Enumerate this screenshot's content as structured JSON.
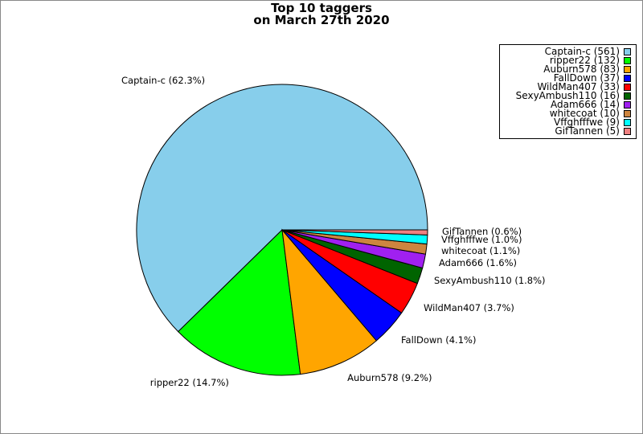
{
  "chart_data": {
    "type": "pie",
    "title": [
      "Top 10 taggers",
      "on March 27th 2020"
    ],
    "legend_position": "top-right",
    "slices": [
      {
        "name": "Captain-c",
        "value": 561,
        "percent": "62.3%",
        "color": "#87ceeb"
      },
      {
        "name": "ripper22",
        "value": 132,
        "percent": "14.7%",
        "color": "#00ff00"
      },
      {
        "name": "Auburn578",
        "value": 83,
        "percent": "9.2%",
        "color": "#ffa500"
      },
      {
        "name": "FallDown",
        "value": 37,
        "percent": "4.1%",
        "color": "#0000ff"
      },
      {
        "name": "WildMan407",
        "value": 33,
        "percent": "3.7%",
        "color": "#ff0000"
      },
      {
        "name": "SexyAmbush110",
        "value": 16,
        "percent": "1.8%",
        "color": "#006400"
      },
      {
        "name": "Adam666",
        "value": 14,
        "percent": "1.6%",
        "color": "#a020f0"
      },
      {
        "name": "whitecoat",
        "value": 10,
        "percent": "1.1%",
        "color": "#cd853f"
      },
      {
        "name": "Vffghfffwe",
        "value": 9,
        "percent": "1.0%",
        "color": "#00ffff"
      },
      {
        "name": "GifTannen",
        "value": 5,
        "percent": "0.6%",
        "color": "#f08080"
      }
    ]
  }
}
